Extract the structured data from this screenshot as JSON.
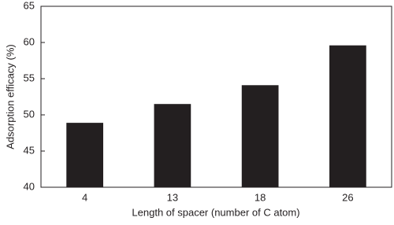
{
  "chart_data": {
    "type": "bar",
    "categories": [
      "4",
      "13",
      "18",
      "26"
    ],
    "values": [
      48.9,
      51.5,
      54.1,
      59.6
    ],
    "color": "#231f20",
    "xlabel": "Length of spacer (number of C atom)",
    "ylabel": "Adsorption efficacy (%)",
    "ylim": [
      40,
      65
    ],
    "yticks": [
      40,
      45,
      50,
      55,
      60,
      65
    ]
  }
}
